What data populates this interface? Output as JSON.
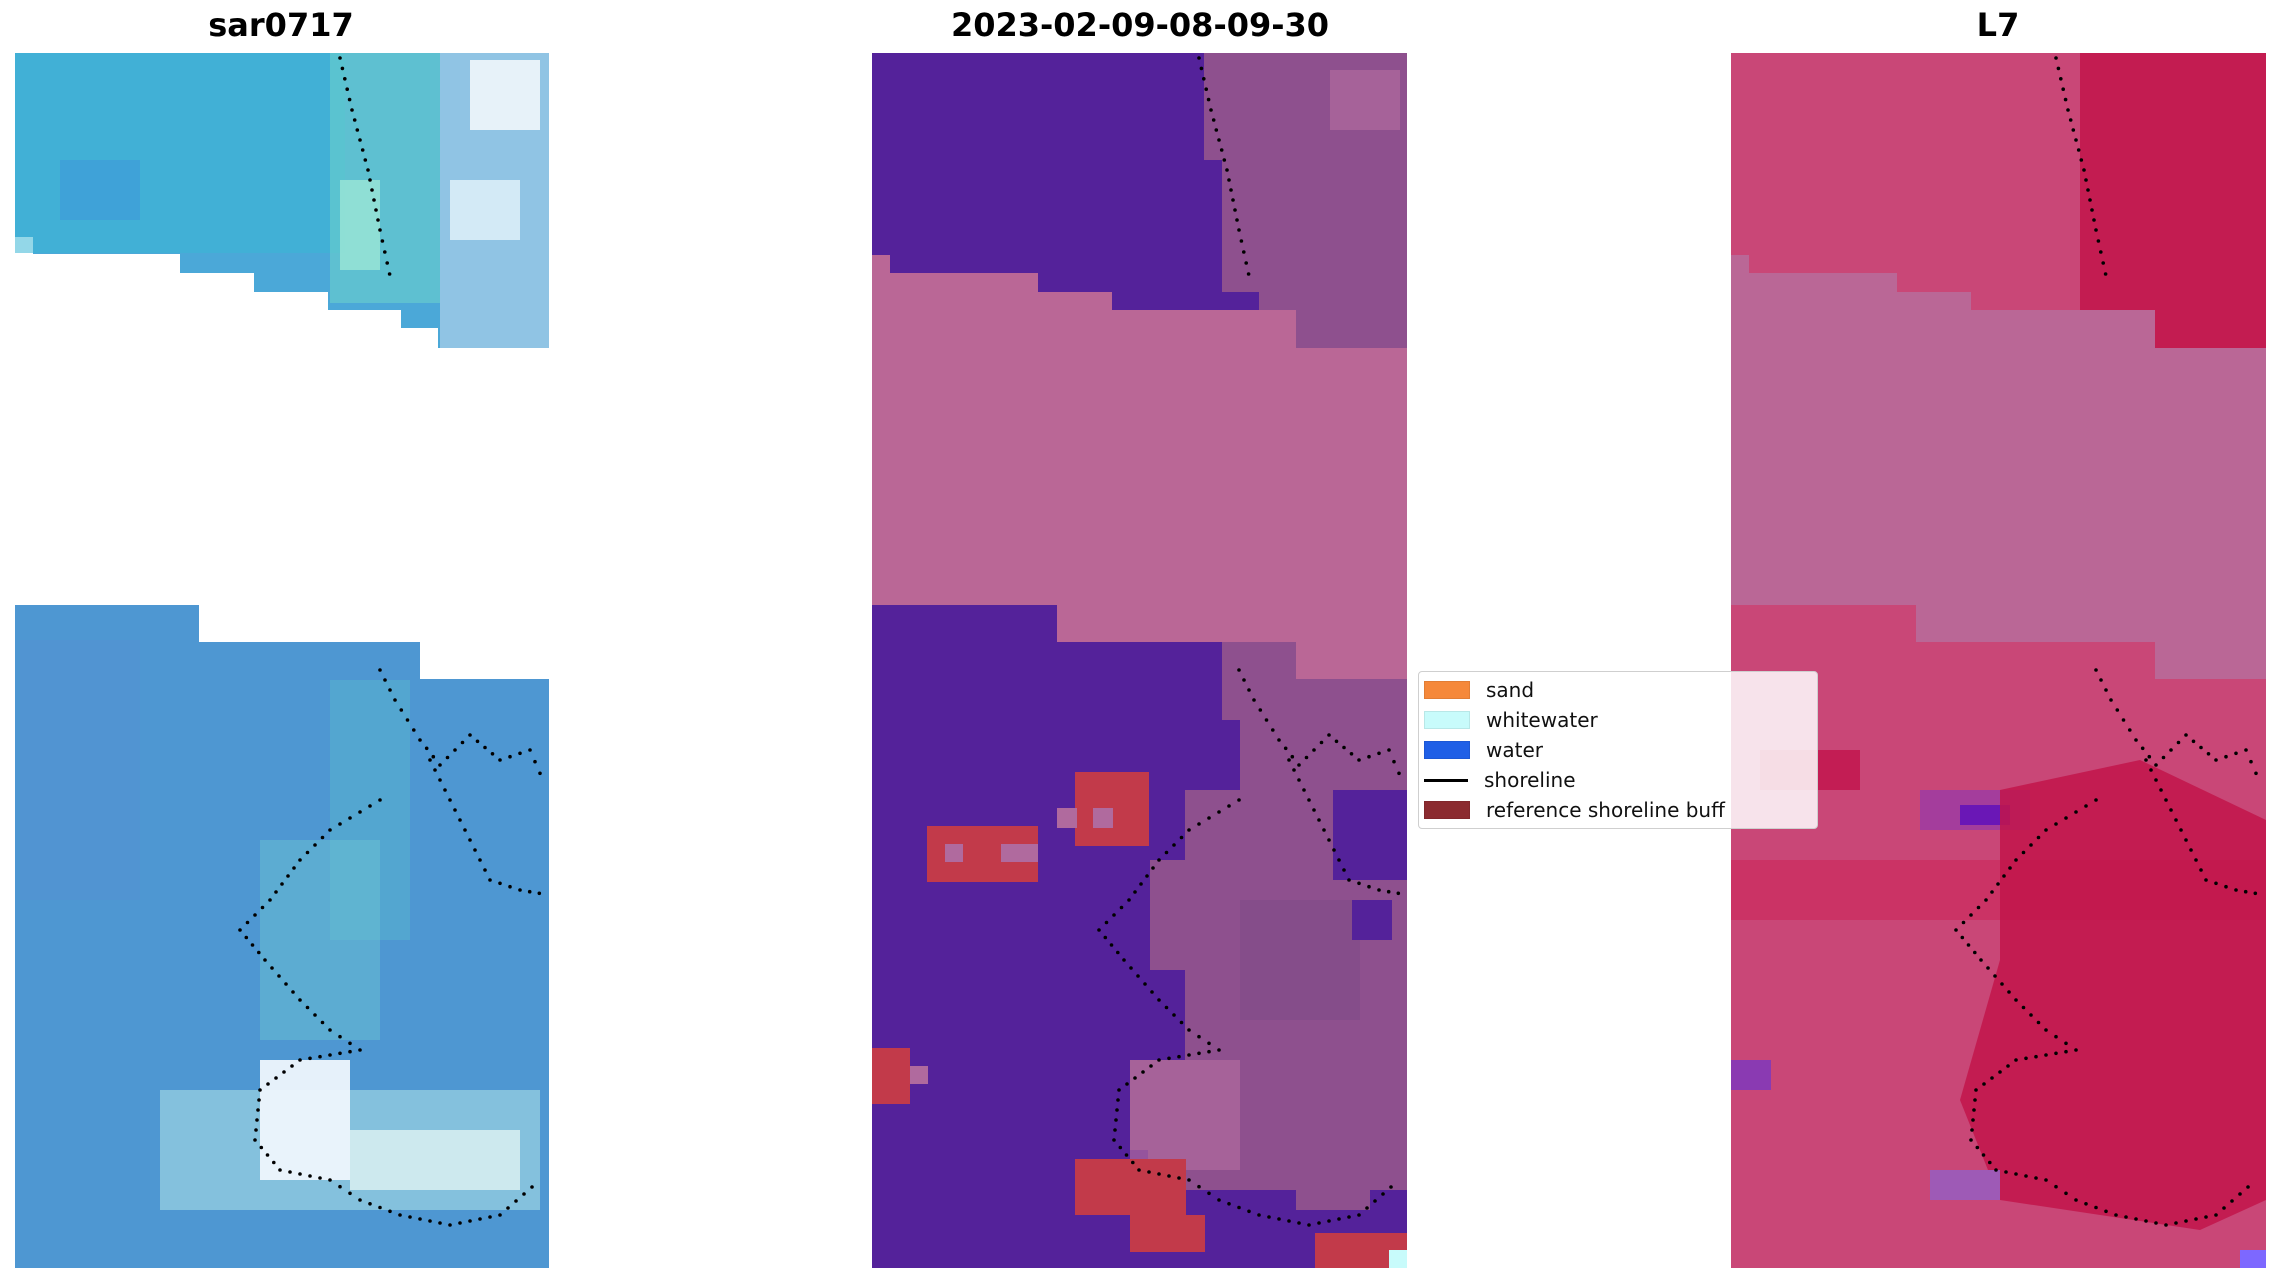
{
  "panels": [
    {
      "title": "sar0717"
    },
    {
      "title": "2023-02-09-08-09-30"
    },
    {
      "title": "L7"
    }
  ],
  "legend": {
    "items": [
      {
        "label": "sand",
        "color": "#f5883a",
        "kind": "patch"
      },
      {
        "label": "whitewater",
        "color": "#c8fbfb",
        "kind": "patch"
      },
      {
        "label": "water",
        "color": "#1f5fe6",
        "kind": "patch"
      },
      {
        "label": "shoreline",
        "color": "#000000",
        "kind": "line"
      },
      {
        "label": "reference shoreline buff",
        "color": "#8b2b30",
        "kind": "patch"
      }
    ]
  },
  "colors": {
    "sar_base": "#4fa3d6",
    "sar_teal": "#5dc7cf",
    "sar_white": "#e8f6fb",
    "class_purple": "#54229a",
    "class_pink": "#ba6796",
    "class_red": "#c23a4a",
    "class_mauve": "#8e508e",
    "l7_pink": "#c94777",
    "l7_crimson": "#c2154a",
    "l7_band": "#ba6796"
  }
}
